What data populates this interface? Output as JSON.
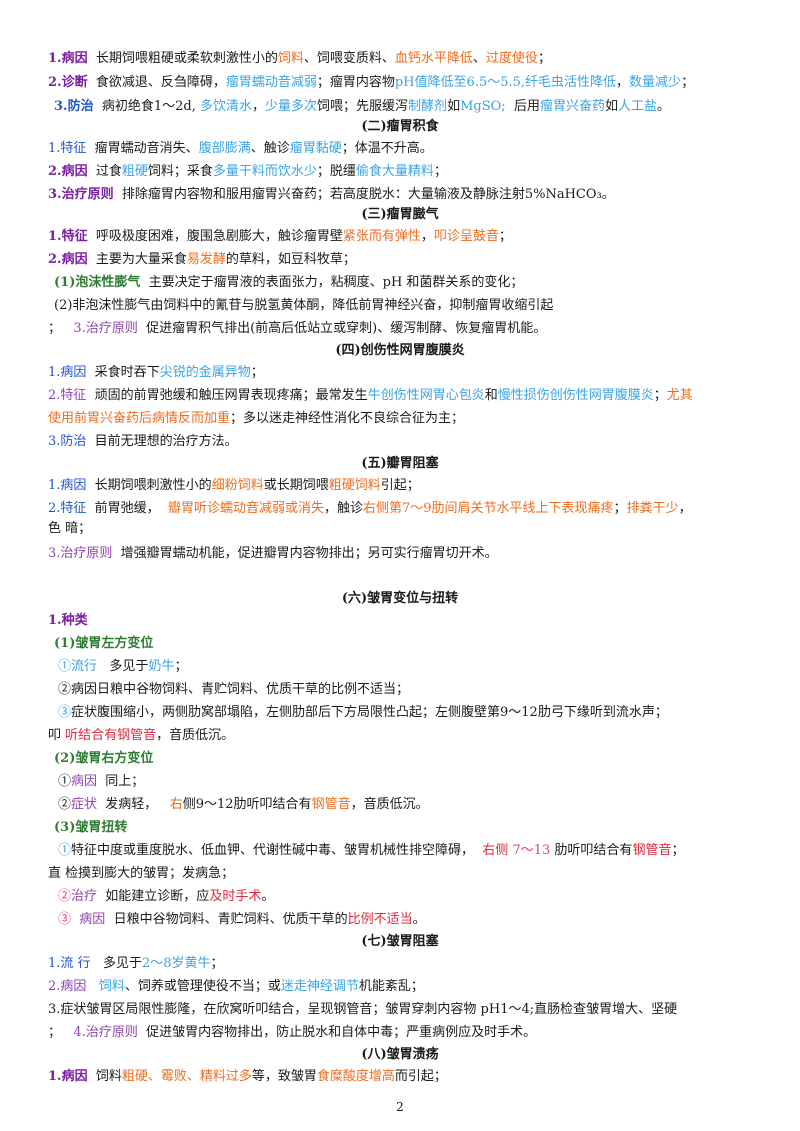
{
  "s1": {
    "l1": {
      "k": "1.病因",
      "a": "长期饲喂粗硬或柔软刺激性小的",
      "b": "饲料",
      "c": "、饲喂变质料、",
      "d": "血钙水平降低",
      "e": "、",
      "f": "过度使役",
      "g": "；"
    },
    "l2": {
      "k": "2.诊断",
      "a": "食欲减退、反刍障碍，",
      "b": "瘤胃蠕动音减弱",
      "c": "；瘤胃内容物",
      "d": "pH值降低至6.5～5.5,纤毛虫活性降低",
      "e": "，",
      "f": "数量减少",
      "g": "；"
    },
    "l3": {
      "k": "3.防治",
      "a": "病初绝食1～2d,",
      "b": "多饮清水",
      "c": "，",
      "d": "少量多次",
      "e": "饲喂；先服缓泻",
      "f": "制酵剂",
      "g": "如",
      "h": "MgSO;",
      "i": "后用",
      "j": "瘤胃兴奋药",
      "m": "如",
      "n": "人工盐",
      "o": "。"
    }
  },
  "s2": {
    "title": "(二)瘤胃积食",
    "l1": {
      "k": "1.特征",
      "a": "瘤胃蠕动音消失、",
      "b": "腹部膨满",
      "c": "、触诊",
      "d": "瘤胃黏硬",
      "e": "；体温不升高。"
    },
    "l2": {
      "k": "2.病因",
      "a": "过食",
      "b": "粗硬",
      "c": "饲料；采食",
      "d": "多量干料而饮水少",
      "e": "；脱缰",
      "f": "偷食大量精料",
      "g": "；"
    },
    "l3": {
      "k": "3.治疗原则",
      "a": "排除瘤胃内容物和服用瘤胃兴奋药；若高度脱水：大量输液及静脉注射5%NaHCO₃。"
    }
  },
  "s3": {
    "title": "(三)瘤胃臌气",
    "l1": {
      "k": "1.特征",
      "a": "呼吸极度困难，腹围急剧膨大，触诊瘤胃壁",
      "b": "紧张而有弹性",
      "c": "，",
      "d": "叩诊呈鼓音",
      "e": "；"
    },
    "l2": {
      "k": "2.病因",
      "a": "主要为大量采食",
      "b": "易发酵",
      "c": "的草料，如豆科牧草；"
    },
    "l3": {
      "k": "(1)泡沫性膨气",
      "a": "主要决定于瘤胃液的表面张力，粘稠度、pH 和菌群关系的变化；"
    },
    "l4": {
      "a": "(2)非泡沫性膨气由饲料中的氰苷与脱氢黄体酮，降低前胃神经兴奋，抑制瘤胃收缩引起"
    },
    "l5": {
      "a": "；",
      "k": "3.治疗原则",
      "b": "促进瘤胃积气排出(前高后低站立或穿刺)、缓泻制酵、恢复瘤胃机能。"
    }
  },
  "s4": {
    "title": "(四)创伤性网胃腹膜炎",
    "l1": {
      "k": "1.病因",
      "a": "采食时吞下",
      "b": "尖锐的金属异物",
      "c": "；"
    },
    "l2": {
      "k": "2.特征",
      "a": "顽固的前胃弛缓和触压网胃表现疼痛；最常发生",
      "b": "牛创伤性网胃心包炎",
      "c": "和",
      "d": "慢性损伤创伤性网胃腹膜炎",
      "e": "；",
      "f": "尤其"
    },
    "l3": {
      "a": "使用前胃兴奋药后病情反而加重",
      "b": "；多以迷走神经性消化不良综合征为主；"
    },
    "l4": {
      "k": "3.防治",
      "a": "目前无理想的治疗方法。"
    }
  },
  "s5": {
    "title": "(五)瓣胃阻塞",
    "l1": {
      "k": "1.病因",
      "a": "长期饲喂刺激性小的",
      "b": "细粉饲料",
      "c": "或长期饲喂",
      "d": "粗硬饲料",
      "e": "引起；"
    },
    "l2": {
      "k": "2.特征",
      "a": "前胃弛缓，",
      "b": "瓣胃听诊蠕动音减弱或消失",
      "c": "，触诊",
      "d": "右侧第7～9肋间肩关节水平线上下表现痛疼",
      "e": "；",
      "f": "排粪干少",
      "g": "，"
    },
    "l3": {
      "a": "色 暗；"
    },
    "l4": {
      "k": "3.治疗原则",
      "a": "增强瓣胃蠕动机能，促进瓣胃内容物排出；另可实行瘤胃切开术。"
    }
  },
  "s6": {
    "title": "(六)皱胃变位与扭转",
    "kinds": "1.种类",
    "left": {
      "title": "(1)皱胃左方变位",
      "l1": {
        "n": "①流行",
        "a": "多见于",
        "b": "奶牛",
        "c": "；"
      },
      "l2": {
        "a": "②病因日粮中谷物饲料、青贮饲料、优质干草的比例不适当；"
      },
      "l3": {
        "n": "③",
        "a": "症状腹围缩小，两侧肋窝部塌陷，左侧肋部后下方局限性凸起；左侧腹壁第9～12肋弓下缘听到流水声；"
      },
      "l4": {
        "a": "叩",
        "b": "听结合有钢管音",
        "c": "，音质低沉。"
      }
    },
    "right": {
      "title": "(2)皱胃右方变位",
      "l1": {
        "a": "①",
        "b": "病因",
        "c": "同上；"
      },
      "l2": {
        "a": "②",
        "b": "症状",
        "c": "发病轻，",
        "d": "右",
        "e": "侧9～12肋听叩结合有",
        "f": "钢管音",
        "g": "，音质低沉。"
      }
    },
    "twist": {
      "title": "(3)皱胃扭转",
      "l1": {
        "n": "①",
        "a": "特征中度或重度脱水、低血钾、代谢性碱中毒、皱胃机械性排空障碍，",
        "b": "右侧",
        "c": "7～13",
        "d": "肋听叩结合有",
        "e": "钢管音",
        "f": "；"
      },
      "l2": {
        "a": "直 检摸到膨大的皱胃；发病急；"
      },
      "l3": {
        "n": "②",
        "b": "治疗",
        "c": "如能建立诊断，应",
        "d": "及时手术",
        "e": "。"
      },
      "l4": {
        "n": "③",
        "b": "病因",
        "c": "日粮中谷物饲料、青贮饲料、优质干草的",
        "d": "比例不适当",
        "e": "。"
      }
    }
  },
  "s7": {
    "title": "(七)皱胃阻塞",
    "l1": {
      "k": "1.流 行",
      "a": "多见于",
      "b": "2～8岁黄牛",
      "c": "；"
    },
    "l2": {
      "k": "2.病因",
      "a": "饲料",
      "b": "、饲养或管理使役不当；或",
      "c": "迷走神经调节",
      "d": "机能紊乱；"
    },
    "l3": {
      "a": "3.症状皱胃区局限性膨隆，在欣窝听叩结合，呈现钢管音；皱胃穿刺内容物 pH1～4;直肠检查皱胃增大、坚硬"
    },
    "l4": {
      "a": "；",
      "k": "4.治疗原则",
      "b": "促进皱胃内容物排出，防止脱水和自体中毒；严重病例应及时手术。"
    }
  },
  "s8": {
    "title": "(八)皱胃溃疡",
    "l1": {
      "k": "1.病因",
      "a": "饲料",
      "b": "粗硬、霉败、精料过多",
      "c": "等，致皱胃",
      "d": "食糜酸度增高",
      "e": "而引起；"
    }
  },
  "page_number": "2"
}
